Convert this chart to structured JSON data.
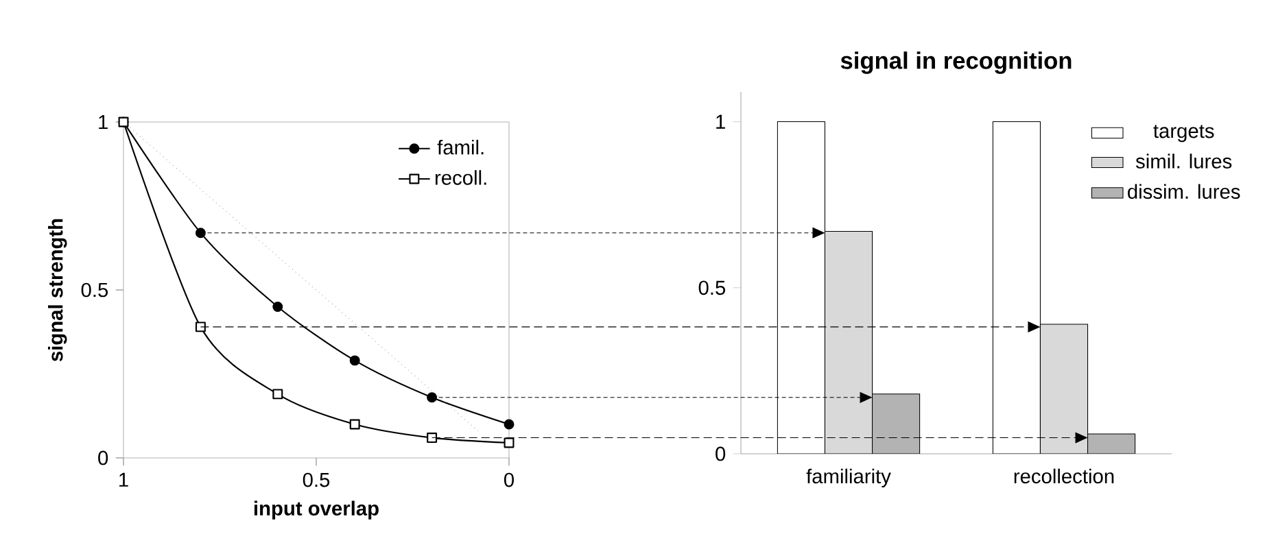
{
  "chart_data": [
    {
      "type": "line",
      "xlabel": "input overlap",
      "ylabel": "signal strength",
      "x": [
        1,
        0.8,
        0.6,
        0.4,
        0.2,
        0
      ],
      "xlim": [
        1,
        0
      ],
      "ylim": [
        0,
        1
      ],
      "xticks": [
        1,
        0.5,
        0
      ],
      "yticks": [
        0,
        0.5,
        1
      ],
      "legend": "top right",
      "grid": false,
      "series": [
        {
          "name": "famil.",
          "color": "#000000",
          "marker": "circle",
          "values": [
            1,
            0.67,
            0.45,
            0.29,
            0.18,
            0.1
          ]
        },
        {
          "name": "recoll.",
          "color": "#000000",
          "marker": "square",
          "values": [
            1,
            0.39,
            0.19,
            0.1,
            0.06,
            0.045
          ]
        },
        {
          "color": "#a0a0a0",
          "marker": "none",
          "line_style": "dotted",
          "x": [
            1,
            0.08
          ],
          "values": [
            1,
            0.08
          ]
        }
      ]
    },
    {
      "type": "bar",
      "title": "signal in recognition",
      "categories": [
        "familiarity",
        "recollection"
      ],
      "ylim": [
        0,
        1.09
      ],
      "yticks": [
        0,
        0.5,
        1
      ],
      "legend": "top right",
      "grid": false,
      "series": [
        {
          "name": "targets",
          "color": "#ffffff",
          "values": [
            1,
            1
          ]
        },
        {
          "name": "simil. lures",
          "color": "#d9d9d9",
          "values": [
            0.67,
            0.39
          ]
        },
        {
          "name": "dissim. lures",
          "color": "#b3b3b3",
          "values": [
            0.18,
            0.06
          ]
        }
      ]
    }
  ]
}
